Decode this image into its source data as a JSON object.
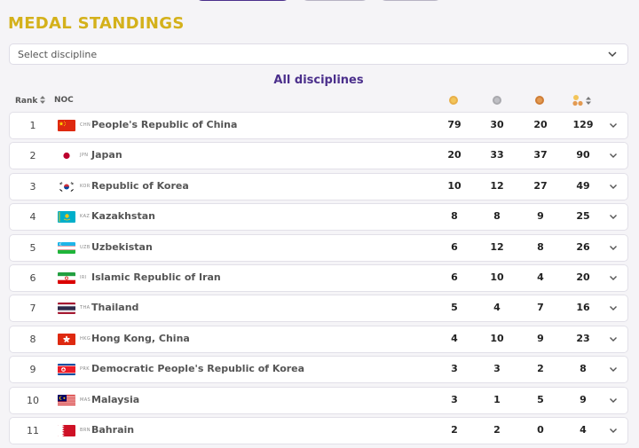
{
  "title": "MEDAL STANDINGS",
  "filter": {
    "placeholder": "Select discipline"
  },
  "heading": "All disciplines",
  "columns": {
    "rank": "Rank",
    "noc": "NOC"
  },
  "colors": {
    "gold": "#f3c55a",
    "silver": "#bfbfc4",
    "bronze": "#e39a52",
    "accent": "#4b2f8c",
    "title": "#d4b11b"
  },
  "rows": [
    {
      "rank": "1",
      "code": "CHN",
      "country": "People's Republic of China",
      "flag": "chn",
      "gold": "79",
      "silver": "30",
      "bronze": "20",
      "total": "129"
    },
    {
      "rank": "2",
      "code": "JPN",
      "country": "Japan",
      "flag": "jpn",
      "gold": "20",
      "silver": "33",
      "bronze": "37",
      "total": "90"
    },
    {
      "rank": "3",
      "code": "KOR",
      "country": "Republic of Korea",
      "flag": "kor",
      "gold": "10",
      "silver": "12",
      "bronze": "27",
      "total": "49"
    },
    {
      "rank": "4",
      "code": "KAZ",
      "country": "Kazakhstan",
      "flag": "kaz",
      "gold": "8",
      "silver": "8",
      "bronze": "9",
      "total": "25"
    },
    {
      "rank": "5",
      "code": "UZB",
      "country": "Uzbekistan",
      "flag": "uzb",
      "gold": "6",
      "silver": "12",
      "bronze": "8",
      "total": "26"
    },
    {
      "rank": "6",
      "code": "IRI",
      "country": "Islamic Republic of Iran",
      "flag": "iri",
      "gold": "6",
      "silver": "10",
      "bronze": "4",
      "total": "20"
    },
    {
      "rank": "7",
      "code": "THA",
      "country": "Thailand",
      "flag": "tha",
      "gold": "5",
      "silver": "4",
      "bronze": "7",
      "total": "16"
    },
    {
      "rank": "8",
      "code": "HKG",
      "country": "Hong Kong, China",
      "flag": "hkg",
      "gold": "4",
      "silver": "10",
      "bronze": "9",
      "total": "23"
    },
    {
      "rank": "9",
      "code": "PRK",
      "country": "Democratic People's Republic of Korea",
      "flag": "prk",
      "gold": "3",
      "silver": "3",
      "bronze": "2",
      "total": "8"
    },
    {
      "rank": "10",
      "code": "MAS",
      "country": "Malaysia",
      "flag": "mas",
      "gold": "3",
      "silver": "1",
      "bronze": "5",
      "total": "9"
    },
    {
      "rank": "11",
      "code": "BRN",
      "country": "Bahrain",
      "flag": "brn",
      "gold": "2",
      "silver": "2",
      "bronze": "0",
      "total": "4"
    }
  ]
}
